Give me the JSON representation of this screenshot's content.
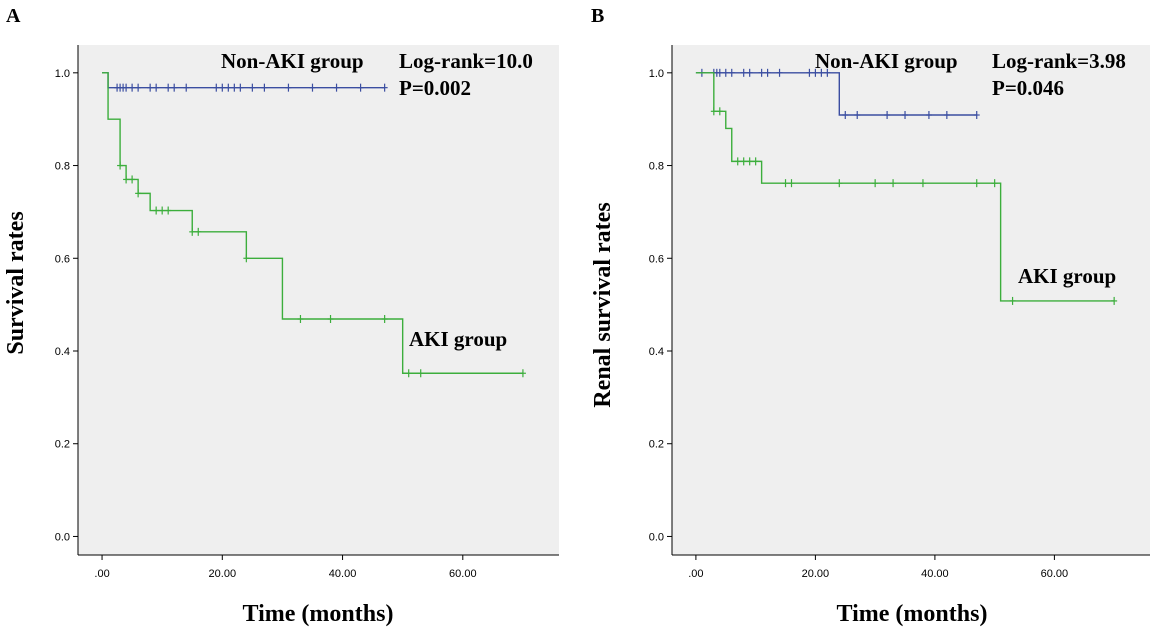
{
  "colors": {
    "plot_bg": "#efefef",
    "axis": "#000000",
    "non_aki": "#3b4ea1",
    "aki": "#3cae3c"
  },
  "chart_data": [
    {
      "panel_label": "A",
      "type": "line",
      "subtype": "kaplan-meier",
      "xlabel": "Time (months)",
      "ylabel": "Survival rates",
      "xlim": [
        -4,
        76
      ],
      "ylim": [
        -0.04,
        1.06
      ],
      "x_ticks": [
        0,
        20,
        40,
        60
      ],
      "x_tick_labels": [
        ".00",
        "20.00",
        "40.00",
        "60.00"
      ],
      "y_ticks": [
        0,
        0.2,
        0.4,
        0.6,
        0.8,
        1.0
      ],
      "y_tick_labels": [
        "0.0",
        "0.2",
        "0.4",
        "0.6",
        "0.8",
        "1.0"
      ],
      "annotations": {
        "non_aki_label": "Non-AKI group",
        "aki_label": "AKI group",
        "stat": "Log-rank=10.0",
        "p": "P=0.002"
      },
      "series": [
        {
          "name": "Non-AKI group",
          "color": "#3b4ea1",
          "steps": [
            [
              0,
              1.0
            ],
            [
              1,
              0.968
            ],
            [
              47,
              0.968
            ]
          ],
          "censored": [
            [
              2.5,
              0.968
            ],
            [
              3,
              0.968
            ],
            [
              3.5,
              0.968
            ],
            [
              4,
              0.968
            ],
            [
              5,
              0.968
            ],
            [
              6,
              0.968
            ],
            [
              8,
              0.968
            ],
            [
              9,
              0.968
            ],
            [
              11,
              0.968
            ],
            [
              12,
              0.968
            ],
            [
              14,
              0.968
            ],
            [
              19,
              0.968
            ],
            [
              20,
              0.968
            ],
            [
              21,
              0.968
            ],
            [
              22,
              0.968
            ],
            [
              23,
              0.968
            ],
            [
              25,
              0.968
            ],
            [
              27,
              0.968
            ],
            [
              31,
              0.968
            ],
            [
              35,
              0.968
            ],
            [
              39,
              0.968
            ],
            [
              43,
              0.968
            ],
            [
              47,
              0.968
            ]
          ]
        },
        {
          "name": "AKI group",
          "color": "#3cae3c",
          "steps": [
            [
              0,
              1.0
            ],
            [
              1,
              0.9
            ],
            [
              3,
              0.8
            ],
            [
              4,
              0.77
            ],
            [
              6,
              0.74
            ],
            [
              8,
              0.703
            ],
            [
              15,
              0.657
            ],
            [
              24,
              0.6
            ],
            [
              30,
              0.469
            ],
            [
              50,
              0.352
            ],
            [
              70,
              0.352
            ]
          ],
          "censored": [
            [
              3,
              0.8
            ],
            [
              4,
              0.77
            ],
            [
              5,
              0.77
            ],
            [
              6,
              0.74
            ],
            [
              9,
              0.703
            ],
            [
              10,
              0.703
            ],
            [
              11,
              0.703
            ],
            [
              15,
              0.657
            ],
            [
              16,
              0.657
            ],
            [
              24,
              0.6
            ],
            [
              33,
              0.469
            ],
            [
              38,
              0.469
            ],
            [
              47,
              0.469
            ],
            [
              51,
              0.352
            ],
            [
              53,
              0.352
            ],
            [
              70,
              0.352
            ]
          ]
        }
      ]
    },
    {
      "panel_label": "B",
      "type": "line",
      "subtype": "kaplan-meier",
      "xlabel": "Time (months)",
      "ylabel": "Renal survival rates",
      "xlim": [
        -4,
        76
      ],
      "ylim": [
        -0.04,
        1.06
      ],
      "x_ticks": [
        0,
        20,
        40,
        60
      ],
      "x_tick_labels": [
        ".00",
        "20.00",
        "40.00",
        "60.00"
      ],
      "y_ticks": [
        0,
        0.2,
        0.4,
        0.6,
        0.8,
        1.0
      ],
      "y_tick_labels": [
        "0.0",
        "0.2",
        "0.4",
        "0.6",
        "0.8",
        "1.0"
      ],
      "annotations": {
        "non_aki_label": "Non-AKI group",
        "aki_label": "AKI group",
        "stat": "Log-rank=3.98",
        "p": "P=0.046"
      },
      "series": [
        {
          "name": "Non-AKI group",
          "color": "#3b4ea1",
          "steps": [
            [
              0,
              1.0
            ],
            [
              24,
              0.909
            ],
            [
              47,
              0.909
            ]
          ],
          "censored": [
            [
              1,
              1.0
            ],
            [
              3,
              1.0
            ],
            [
              3.5,
              1.0
            ],
            [
              4,
              1.0
            ],
            [
              5,
              1.0
            ],
            [
              6,
              1.0
            ],
            [
              8,
              1.0
            ],
            [
              9,
              1.0
            ],
            [
              11,
              1.0
            ],
            [
              12,
              1.0
            ],
            [
              14,
              1.0
            ],
            [
              19,
              1.0
            ],
            [
              20,
              1.0
            ],
            [
              21,
              1.0
            ],
            [
              22,
              1.0
            ],
            [
              25,
              0.909
            ],
            [
              27,
              0.909
            ],
            [
              32,
              0.909
            ],
            [
              35,
              0.909
            ],
            [
              39,
              0.909
            ],
            [
              42,
              0.909
            ],
            [
              47,
              0.909
            ]
          ]
        },
        {
          "name": "AKI group",
          "color": "#3cae3c",
          "steps": [
            [
              0,
              1.0
            ],
            [
              3,
              0.917
            ],
            [
              5,
              0.88
            ],
            [
              6,
              0.809
            ],
            [
              11,
              0.762
            ],
            [
              51,
              0.508
            ],
            [
              70,
              0.508
            ]
          ],
          "censored": [
            [
              3,
              0.917
            ],
            [
              4,
              0.917
            ],
            [
              7,
              0.809
            ],
            [
              8,
              0.809
            ],
            [
              9,
              0.809
            ],
            [
              10,
              0.809
            ],
            [
              15,
              0.762
            ],
            [
              16,
              0.762
            ],
            [
              24,
              0.762
            ],
            [
              30,
              0.762
            ],
            [
              33,
              0.762
            ],
            [
              38,
              0.762
            ],
            [
              47,
              0.762
            ],
            [
              50,
              0.762
            ],
            [
              53,
              0.508
            ],
            [
              70,
              0.508
            ]
          ]
        }
      ]
    }
  ]
}
